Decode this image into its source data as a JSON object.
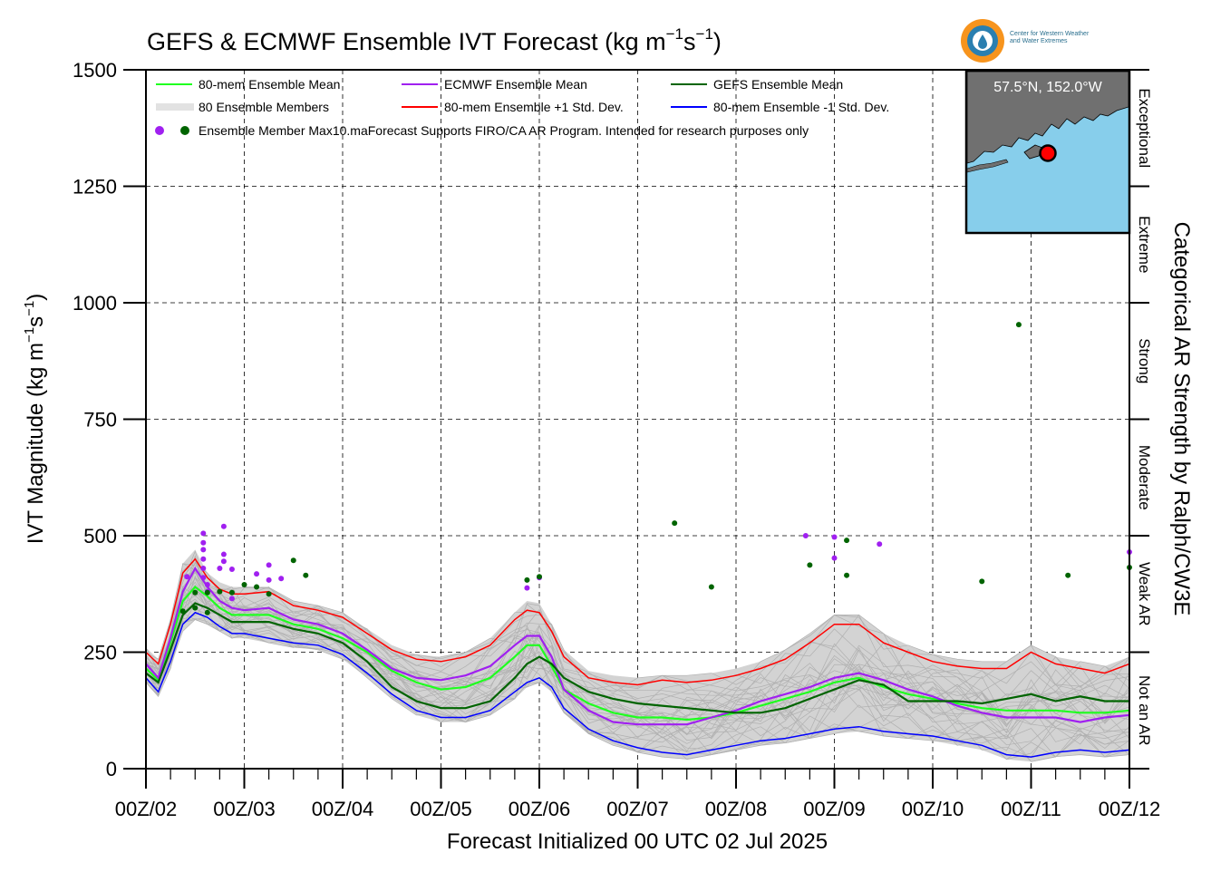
{
  "title": {
    "main": "GEFS & ECMWF Ensemble IVT Forecast (kg m",
    "exp1": "−1",
    "mid": "s",
    "exp2": "−1",
    "end": ")"
  },
  "logo": {
    "text_line1": "Center for Western Weather",
    "text_line2": "and Water Extremes",
    "icon": "cw3e-water-drop-logo"
  },
  "inset_map": {
    "caption": "57.5°N, 152.0°W",
    "land_color": "#707070",
    "water_color": "#87ceeb",
    "marker_color": "#ff0000"
  },
  "legend": {
    "items": [
      {
        "label": "80-mem Ensemble Mean",
        "color": "#1fff1f"
      },
      {
        "label": "ECMWF Ensemble Mean",
        "color": "#a020f0"
      },
      {
        "label": "GEFS Ensemble Mean",
        "color": "#006400"
      },
      {
        "label": "80 Ensemble Members",
        "color": "#b0b0b0"
      },
      {
        "label": "80-mem Ensemble +1 Std. Dev.",
        "color": "#ff0000"
      },
      {
        "label": "80-mem Ensemble -1 Std. Dev.",
        "color": "#0000ff"
      }
    ],
    "max_label": "Ensemble Member Max",
    "footnote": "10.maForecast Supports FIRO/CA AR Program. Intended for research purposes only"
  },
  "chart_data": {
    "type": "line",
    "xlabel": "Forecast Initialized 00 UTC 02 Jul 2025",
    "ylabel": "IVT Magnitude (kg m−1s−1)",
    "ylabel_parts": {
      "main": "IVT Magnitude (kg m",
      "exp1": "−1",
      "mid": "s",
      "exp2": "−1",
      "end": ")"
    },
    "right_label": "Categorical AR Strength by Ralph/CW3E",
    "xlim": [
      0,
      240
    ],
    "ylim": [
      0,
      1500
    ],
    "x_ticks": [
      {
        "x": 0,
        "label": "00Z/02"
      },
      {
        "x": 24,
        "label": "00Z/03"
      },
      {
        "x": 48,
        "label": "00Z/04"
      },
      {
        "x": 72,
        "label": "00Z/05"
      },
      {
        "x": 96,
        "label": "00Z/06"
      },
      {
        "x": 120,
        "label": "00Z/07"
      },
      {
        "x": 144,
        "label": "00Z/08"
      },
      {
        "x": 168,
        "label": "00Z/09"
      },
      {
        "x": 192,
        "label": "00Z/10"
      },
      {
        "x": 216,
        "label": "00Z/11"
      },
      {
        "x": 240,
        "label": "00Z/12"
      }
    ],
    "y_ticks": [
      0,
      250,
      500,
      750,
      1000,
      1250,
      1500
    ],
    "grid": true,
    "categories": [
      {
        "label": "Not an AR",
        "from": 0,
        "to": 250
      },
      {
        "label": "Weak AR",
        "from": 250,
        "to": 500
      },
      {
        "label": "Moderate",
        "from": 500,
        "to": 750
      },
      {
        "label": "Strong",
        "from": 750,
        "to": 1000
      },
      {
        "label": "Extreme",
        "from": 1000,
        "to": 1250
      },
      {
        "label": "Exceptional",
        "from": 1250,
        "to": 1500
      }
    ],
    "x": [
      0,
      3,
      6,
      9,
      12,
      15,
      18,
      21,
      24,
      30,
      36,
      42,
      48,
      54,
      60,
      66,
      72,
      78,
      84,
      90,
      93,
      96,
      99,
      102,
      108,
      114,
      120,
      126,
      132,
      138,
      144,
      150,
      156,
      162,
      168,
      174,
      180,
      186,
      192,
      198,
      204,
      210,
      216,
      222,
      228,
      234,
      240
    ],
    "series": [
      {
        "name": "80-mem Ensemble Mean",
        "color": "#1fff1f",
        "width": 2.2,
        "values": [
          215,
          190,
          270,
          360,
          390,
          370,
          345,
          330,
          330,
          330,
          310,
          300,
          280,
          250,
          210,
          185,
          170,
          175,
          195,
          240,
          265,
          265,
          220,
          170,
          140,
          120,
          110,
          110,
          105,
          110,
          120,
          135,
          150,
          165,
          185,
          195,
          175,
          160,
          150,
          140,
          130,
          125,
          125,
          125,
          120,
          120,
          125
        ]
      },
      {
        "name": "ECMWF Ensemble Mean",
        "color": "#a020f0",
        "width": 2.2,
        "values": [
          225,
          195,
          280,
          380,
          430,
          390,
          360,
          345,
          340,
          345,
          320,
          310,
          290,
          255,
          215,
          195,
          190,
          200,
          220,
          265,
          285,
          285,
          240,
          170,
          125,
          100,
          95,
          95,
          95,
          110,
          125,
          145,
          160,
          175,
          195,
          205,
          190,
          170,
          155,
          135,
          120,
          110,
          110,
          110,
          100,
          110,
          115
        ]
      },
      {
        "name": "GEFS Ensemble Mean",
        "color": "#006400",
        "width": 2.2,
        "values": [
          205,
          185,
          255,
          330,
          355,
          345,
          330,
          315,
          315,
          315,
          300,
          290,
          270,
          230,
          175,
          145,
          130,
          130,
          145,
          195,
          225,
          240,
          225,
          195,
          165,
          150,
          140,
          135,
          130,
          125,
          120,
          120,
          130,
          150,
          170,
          190,
          180,
          145,
          145,
          145,
          140,
          150,
          160,
          145,
          155,
          145,
          145
        ]
      },
      {
        "name": "80-mem Ensemble +1 Std. Dev.",
        "color": "#ff0000",
        "width": 1.5,
        "values": [
          250,
          225,
          310,
          420,
          450,
          410,
          385,
          375,
          375,
          380,
          350,
          340,
          325,
          290,
          255,
          235,
          230,
          240,
          265,
          320,
          340,
          335,
          295,
          240,
          195,
          185,
          180,
          190,
          185,
          190,
          200,
          215,
          235,
          270,
          310,
          310,
          270,
          250,
          230,
          220,
          215,
          215,
          250,
          225,
          215,
          205,
          225
        ]
      },
      {
        "name": "80-mem Ensemble -1 Std. Dev.",
        "color": "#0000ff",
        "width": 1.5,
        "values": [
          195,
          165,
          230,
          310,
          335,
          325,
          305,
          290,
          290,
          280,
          270,
          265,
          245,
          205,
          160,
          125,
          110,
          110,
          125,
          165,
          185,
          195,
          175,
          130,
          85,
          60,
          45,
          35,
          30,
          40,
          50,
          60,
          65,
          75,
          85,
          90,
          80,
          75,
          70,
          60,
          50,
          30,
          25,
          35,
          40,
          35,
          40
        ]
      }
    ],
    "members_band": {
      "upper": [
        260,
        235,
        320,
        440,
        470,
        420,
        400,
        390,
        390,
        390,
        360,
        350,
        335,
        300,
        265,
        245,
        240,
        250,
        280,
        335,
        360,
        355,
        310,
        255,
        210,
        200,
        195,
        200,
        200,
        205,
        215,
        230,
        255,
        290,
        330,
        330,
        290,
        265,
        245,
        235,
        230,
        230,
        265,
        240,
        230,
        220,
        240
      ],
      "lower": [
        185,
        155,
        215,
        295,
        320,
        310,
        295,
        280,
        280,
        270,
        260,
        255,
        235,
        195,
        150,
        115,
        100,
        100,
        115,
        150,
        175,
        185,
        165,
        120,
        75,
        50,
        35,
        25,
        20,
        30,
        40,
        50,
        55,
        65,
        75,
        80,
        70,
        65,
        60,
        50,
        40,
        20,
        15,
        25,
        30,
        25,
        30
      ]
    },
    "member_maxima": [
      {
        "x": 14,
        "y": 505,
        "model": "ECMWF"
      },
      {
        "x": 14,
        "y": 485,
        "model": "ECMWF"
      },
      {
        "x": 14,
        "y": 470,
        "model": "ECMWF"
      },
      {
        "x": 14,
        "y": 450,
        "model": "ECMWF"
      },
      {
        "x": 14,
        "y": 430,
        "model": "ECMWF"
      },
      {
        "x": 14,
        "y": 410,
        "model": "ECMWF"
      },
      {
        "x": 15,
        "y": 395,
        "model": "ECMWF"
      },
      {
        "x": 15,
        "y": 380,
        "model": "ECMWF"
      },
      {
        "x": 19,
        "y": 520,
        "model": "ECMWF"
      },
      {
        "x": 19,
        "y": 460,
        "model": "ECMWF"
      },
      {
        "x": 19,
        "y": 445,
        "model": "ECMWF"
      },
      {
        "x": 10,
        "y": 412,
        "model": "ECMWF"
      },
      {
        "x": 18,
        "y": 430,
        "model": "ECMWF"
      },
      {
        "x": 21,
        "y": 428,
        "model": "ECMWF"
      },
      {
        "x": 21,
        "y": 365,
        "model": "ECMWF"
      },
      {
        "x": 27,
        "y": 418,
        "model": "ECMWF"
      },
      {
        "x": 30,
        "y": 437,
        "model": "ECMWF"
      },
      {
        "x": 30,
        "y": 405,
        "model": "ECMWF"
      },
      {
        "x": 33,
        "y": 408,
        "model": "ECMWF"
      },
      {
        "x": 93,
        "y": 388,
        "model": "ECMWF"
      },
      {
        "x": 96,
        "y": 410,
        "model": "ECMWF"
      },
      {
        "x": 161,
        "y": 500,
        "model": "ECMWF"
      },
      {
        "x": 168,
        "y": 497,
        "model": "ECMWF"
      },
      {
        "x": 168,
        "y": 452,
        "model": "ECMWF"
      },
      {
        "x": 179,
        "y": 482,
        "model": "ECMWF"
      },
      {
        "x": 240,
        "y": 465,
        "model": "ECMWF"
      },
      {
        "x": 9,
        "y": 338,
        "model": "GEFS"
      },
      {
        "x": 12,
        "y": 345,
        "model": "GEFS"
      },
      {
        "x": 12,
        "y": 378,
        "model": "GEFS"
      },
      {
        "x": 15,
        "y": 335,
        "model": "GEFS"
      },
      {
        "x": 18,
        "y": 380,
        "model": "GEFS"
      },
      {
        "x": 21,
        "y": 378,
        "model": "GEFS"
      },
      {
        "x": 15,
        "y": 378,
        "model": "GEFS"
      },
      {
        "x": 24,
        "y": 395,
        "model": "GEFS"
      },
      {
        "x": 27,
        "y": 390,
        "model": "GEFS"
      },
      {
        "x": 30,
        "y": 375,
        "model": "GEFS"
      },
      {
        "x": 36,
        "y": 447,
        "model": "GEFS"
      },
      {
        "x": 39,
        "y": 415,
        "model": "GEFS"
      },
      {
        "x": 93,
        "y": 405,
        "model": "GEFS"
      },
      {
        "x": 96,
        "y": 412,
        "model": "GEFS"
      },
      {
        "x": 129,
        "y": 527,
        "model": "GEFS"
      },
      {
        "x": 138,
        "y": 390,
        "model": "GEFS"
      },
      {
        "x": 162,
        "y": 437,
        "model": "GEFS"
      },
      {
        "x": 171,
        "y": 490,
        "model": "GEFS"
      },
      {
        "x": 171,
        "y": 415,
        "model": "GEFS"
      },
      {
        "x": 204,
        "y": 402,
        "model": "GEFS"
      },
      {
        "x": 213,
        "y": 953,
        "model": "GEFS"
      },
      {
        "x": 225,
        "y": 415,
        "model": "GEFS"
      },
      {
        "x": 240,
        "y": 432,
        "model": "GEFS"
      }
    ]
  }
}
